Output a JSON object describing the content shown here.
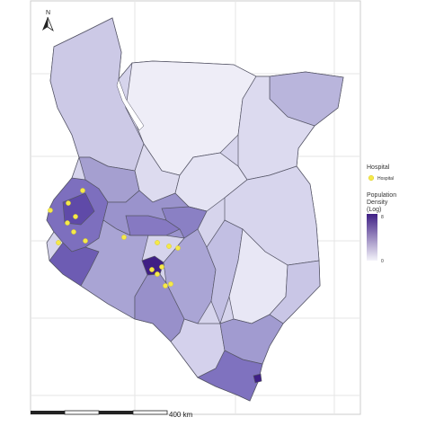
{
  "map": {
    "north_label": "N",
    "scale_label": "400 km",
    "colors": {
      "background": "#ffffff",
      "panel_border": "#cccccc",
      "grid": "#e6e6e6",
      "county_border": "#555566",
      "density_low": "#f4f3fa",
      "density_high": "#3f1f85",
      "hospital": "#f5e94a"
    },
    "legend": {
      "hospital_title": "Hospital",
      "hospital_item": "Hospital",
      "density_title_line1": "Population",
      "density_title_line2": "Density",
      "density_title_line3": "(Log)",
      "density_max_label": "8",
      "density_min_label": "0"
    }
  }
}
